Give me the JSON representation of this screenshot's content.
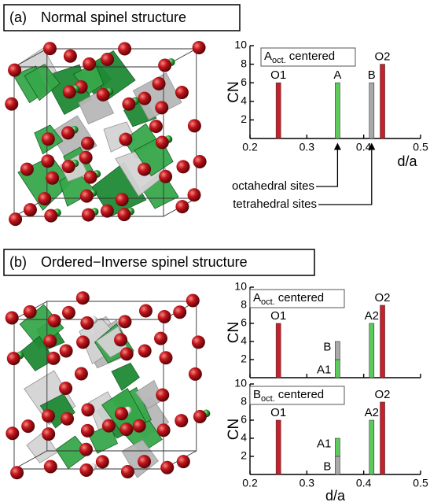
{
  "panels": [
    {
      "label": "(a)",
      "title": "Normal spinel structure"
    },
    {
      "label": "(b)",
      "title": "Ordered−Inverse spinel structure"
    }
  ],
  "chart_data": [
    {
      "type": "bar",
      "annotation": {
        "main": "A",
        "sub": "oct.",
        "rest": "centered"
      },
      "y_label": "CN",
      "x_label": "d/a",
      "tick_labels": true,
      "xlim": [
        0.2,
        0.5
      ],
      "ylim": [
        0,
        10
      ],
      "xticks": [
        0.2,
        0.3,
        0.4,
        0.5
      ],
      "yticks": [
        2,
        4,
        6,
        8,
        10
      ],
      "x": [
        0.25,
        0.354,
        0.414,
        0.433
      ],
      "values": [
        6,
        6,
        6,
        8
      ],
      "bar_labels": [
        "O1",
        "A",
        "B",
        "O2"
      ],
      "colors": [
        "#c8202a",
        "#5ccb5c",
        "#a9a9a9",
        "#c8202a"
      ],
      "arrows": [
        {
          "text": "octahedral sites",
          "x": 0.354
        },
        {
          "text": "tetrahedral sites",
          "x": 0.414
        }
      ]
    },
    {
      "type": "bar",
      "annotation": {
        "main": "A",
        "sub": "oct.",
        "rest": "centered"
      },
      "y_label": "CN",
      "tick_labels": false,
      "xlim": [
        0.2,
        0.5
      ],
      "ylim": [
        0,
        10
      ],
      "xticks": [
        0.2,
        0.3,
        0.4,
        0.5
      ],
      "yticks": [
        2,
        4,
        6,
        8,
        10
      ],
      "x": [
        0.25,
        0.354,
        0.354,
        0.414,
        0.433
      ],
      "values": [
        6,
        2,
        2,
        6,
        8
      ],
      "bar_labels": [
        "O1",
        "A1",
        "B",
        "A2",
        "O2"
      ],
      "colors": [
        "#c8202a",
        "#5ccb5c",
        "#a9a9a9",
        "#5ccb5c",
        "#c8202a"
      ]
    },
    {
      "type": "bar",
      "annotation": {
        "main": "B",
        "sub": "oct.",
        "rest": "centered"
      },
      "y_label": "CN",
      "x_label": "d/a",
      "tick_labels": true,
      "xlim": [
        0.2,
        0.5
      ],
      "ylim": [
        0,
        10
      ],
      "xticks": [
        0.2,
        0.3,
        0.4,
        0.5
      ],
      "yticks": [
        2,
        4,
        6,
        8,
        10
      ],
      "x": [
        0.25,
        0.354,
        0.354,
        0.414,
        0.433
      ],
      "values": [
        6,
        2,
        2,
        6,
        8
      ],
      "bar_labels": [
        "O1",
        "B",
        "A1",
        "A2",
        "O2"
      ],
      "colors": [
        "#c8202a",
        "#a9a9a9",
        "#5ccb5c",
        "#5ccb5c",
        "#c8202a"
      ]
    }
  ]
}
